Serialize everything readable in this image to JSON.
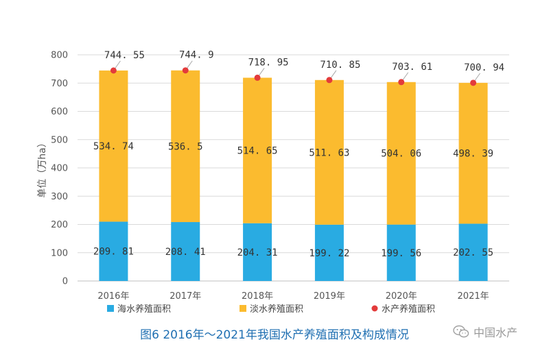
{
  "chart_data": {
    "type": "bar",
    "stacked": true,
    "categories": [
      "2016年",
      "2017年",
      "2018年",
      "2019年",
      "2020年",
      "2021年"
    ],
    "series": [
      {
        "name": "海水养殖面积",
        "color": "#29abe2",
        "values": [
          209.81,
          208.41,
          204.31,
          199.22,
          199.56,
          202.55
        ],
        "labels": [
          "209. 81",
          "208. 41",
          "204. 31",
          "199. 22",
          "199. 56",
          "202. 55"
        ]
      },
      {
        "name": "淡水养殖面积",
        "color": "#fbbb2f",
        "values": [
          534.74,
          536.5,
          514.65,
          511.63,
          504.06,
          498.39
        ],
        "labels": [
          "534. 74",
          "536. 5",
          "514. 65",
          "511. 63",
          "504. 06",
          "498. 39"
        ]
      },
      {
        "name": "水产养殖面积",
        "color": "#e33b3b",
        "type": "scatter",
        "values": [
          744.55,
          744.9,
          718.95,
          710.85,
          703.61,
          700.94
        ],
        "labels": [
          "744. 55",
          "744. 9",
          "718. 95",
          "710. 85",
          "703. 61",
          "700. 94"
        ]
      }
    ],
    "ylabel": "单位（万ha）",
    "ylim": [
      0,
      800
    ],
    "yticks": [
      0,
      100,
      200,
      300,
      400,
      500,
      600,
      700,
      800
    ],
    "grid": true,
    "legend": "bottom",
    "title": "图6 2016年～2021年我国水产养殖面积及构成情况"
  },
  "watermark": {
    "text": "中国水产",
    "icon": "wechat-icon"
  }
}
